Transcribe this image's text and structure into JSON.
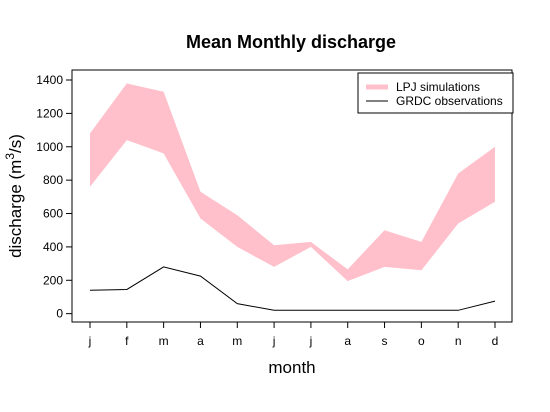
{
  "chart_data": {
    "type": "area",
    "title": "Mean Monthly discharge",
    "xlabel": "month",
    "ylabel": "discharge (m³/s)",
    "ylabel_parts": {
      "pre": "discharge (m",
      "sup": "3",
      "post": "/s)"
    },
    "categories": [
      "j",
      "f",
      "m",
      "a",
      "m",
      "j",
      "j",
      "a",
      "s",
      "o",
      "n",
      "d"
    ],
    "yticks": [
      0,
      200,
      400,
      600,
      800,
      1000,
      1200,
      1400
    ],
    "ylim": [
      -50,
      1460
    ],
    "grid": false,
    "legend_position": "top-right",
    "colors": {
      "band": "#ffc0cb",
      "line": "#000000"
    },
    "series": [
      {
        "name": "LPJ simulations",
        "kind": "band",
        "lower": [
          760,
          1040,
          960,
          570,
          400,
          280,
          400,
          195,
          280,
          260,
          540,
          670
        ],
        "upper": [
          1080,
          1380,
          1330,
          730,
          590,
          410,
          430,
          265,
          500,
          430,
          840,
          1000
        ]
      },
      {
        "name": "GRDC observations",
        "kind": "line",
        "values": [
          140,
          145,
          280,
          225,
          60,
          20,
          20,
          20,
          20,
          20,
          20,
          75
        ]
      }
    ]
  }
}
